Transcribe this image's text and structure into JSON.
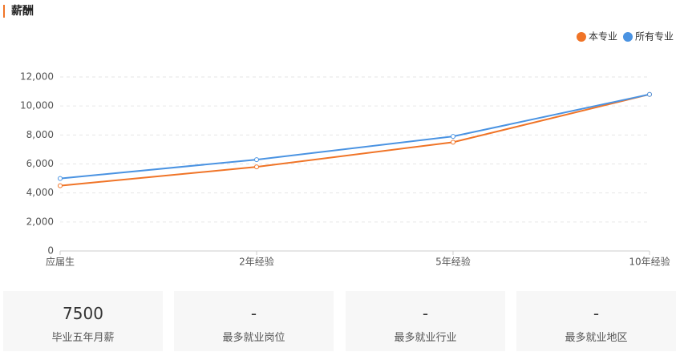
{
  "chart_data": {
    "type": "line",
    "title": "薪酬",
    "categories": [
      "应届生",
      "2年经验",
      "5年经验",
      "10年经验"
    ],
    "series": [
      {
        "name": "本专业",
        "color": "#f07427",
        "values": [
          4500,
          5800,
          7500,
          10800
        ]
      },
      {
        "name": "所有专业",
        "color": "#4a93e2",
        "values": [
          5000,
          6300,
          7900,
          10800
        ]
      }
    ],
    "ylim": [
      0,
      12000
    ],
    "yticks": [
      0,
      {
        "value": 2000,
        "label": "2,000"
      },
      {
        "value": 4000,
        "label": "4,000"
      },
      {
        "value": 6000,
        "label": "6,000"
      },
      {
        "value": 8000,
        "label": "8,000"
      },
      {
        "value": 10000,
        "label": "10,000"
      },
      {
        "value": 12000,
        "label": "12,000"
      }
    ],
    "grid": true,
    "legend": "top-right"
  },
  "stats": [
    {
      "value": 7500,
      "label": "毕业五年月薪"
    },
    {
      "value": "-",
      "label": "最多就业岗位"
    },
    {
      "value": "-",
      "label": "最多就业行业"
    },
    {
      "value": "-",
      "label": "最多就业地区"
    }
  ]
}
